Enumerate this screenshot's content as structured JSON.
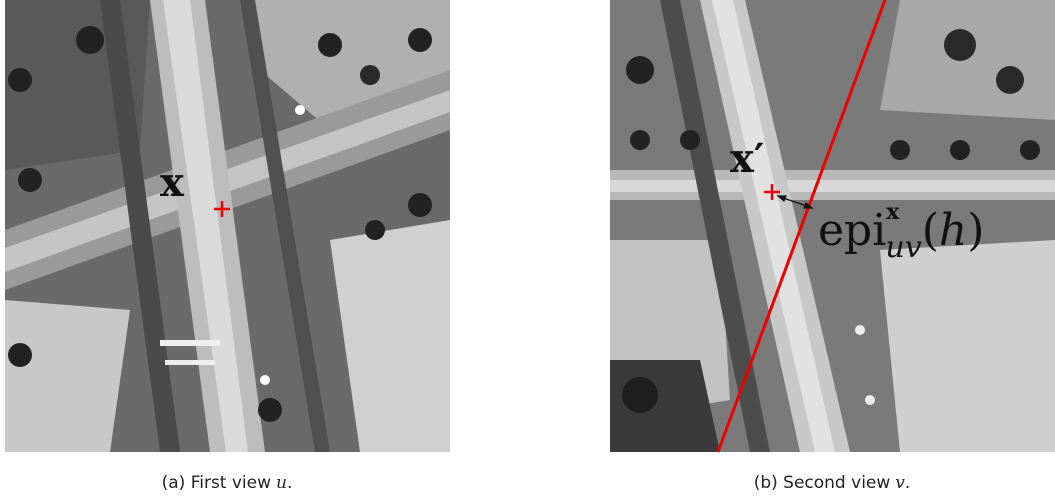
{
  "panels": [
    {
      "point_label": "x",
      "caption": {
        "prefix": "(a) First view",
        "variable": "u",
        "suffix": "."
      }
    },
    {
      "point_label": "x′",
      "epipolar_label": {
        "base": "epi",
        "superscript": "x",
        "subscript": "uv",
        "open": "(",
        "argument": "h",
        "close": ")"
      },
      "caption": {
        "prefix": "(b) Second view",
        "variable": "v",
        "suffix": "."
      }
    }
  ]
}
